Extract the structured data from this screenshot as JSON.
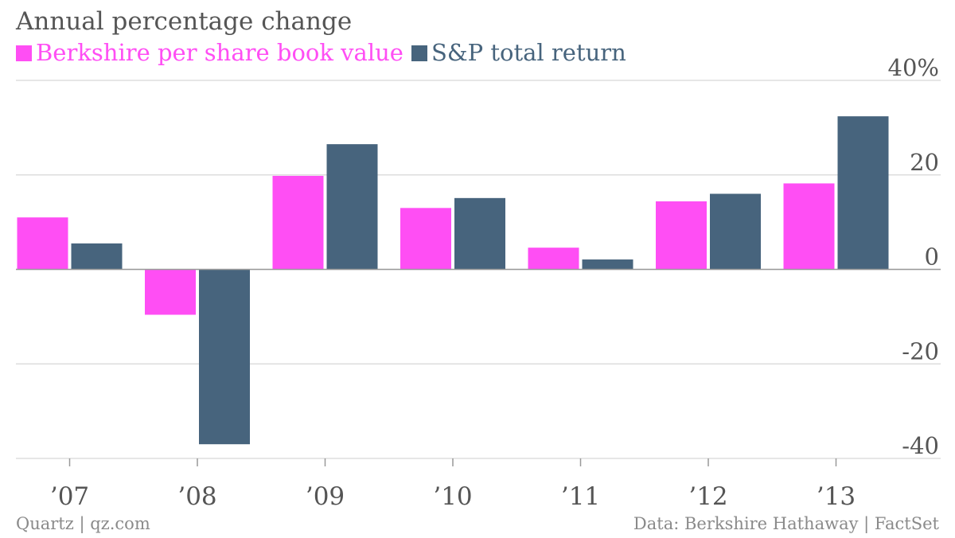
{
  "title": "Annual percentage change",
  "footer": {
    "source_left": "Quartz | qz.com",
    "source_right": "Data: Berkshire Hathaway | FactSet"
  },
  "colors": {
    "berkshire": "#ff4ef4",
    "sp": "#47647d",
    "grid": "#dddddd",
    "axis_text": "#555555"
  },
  "chart_data": {
    "type": "bar",
    "categories": [
      "’07",
      "’08",
      "’09",
      "’10",
      "’11",
      "’12",
      "’13"
    ],
    "series": [
      {
        "name": "Berkshire per share book value",
        "values": [
          11.0,
          -9.6,
          19.8,
          13.0,
          4.6,
          14.4,
          18.2
        ]
      },
      {
        "name": "S&P total return",
        "values": [
          5.5,
          -37.0,
          26.5,
          15.1,
          2.1,
          16.0,
          32.4
        ]
      }
    ],
    "y_ticks": [
      40,
      20,
      0,
      -20,
      -40
    ],
    "y_tick_labels": [
      "40%",
      "20",
      "0",
      "-20",
      "-40"
    ],
    "ylim": [
      -40,
      40
    ],
    "grid": true,
    "legend_position": "top-left",
    "y_axis_side": "right"
  }
}
